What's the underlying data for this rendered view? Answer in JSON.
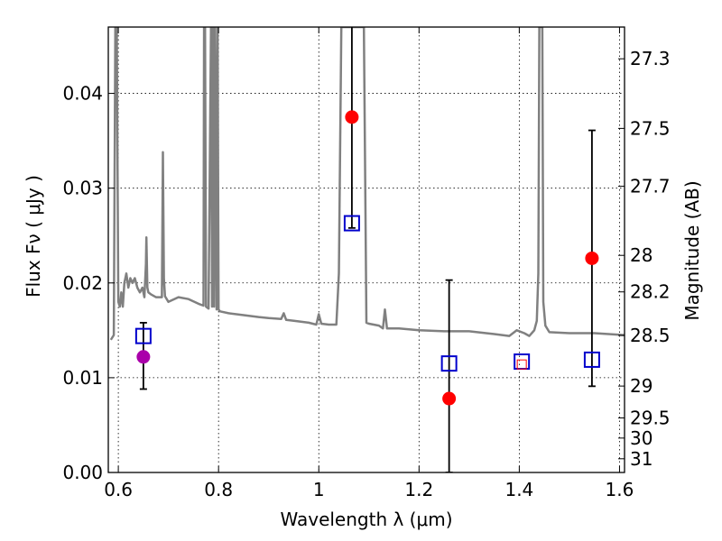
{
  "chart_data": {
    "type": "scatter",
    "title": "",
    "xlabel": "Wavelength  λ (μm)",
    "ylabel": "Flux  Fν  ( μJy )",
    "y2label": "Magnitude (AB)",
    "xlim": [
      0.58,
      1.61
    ],
    "ylim": [
      0.0,
      0.047
    ],
    "grid": true,
    "x_ticks": [
      0.6,
      0.8,
      1.0,
      1.2,
      1.4,
      1.6
    ],
    "x_tick_labels": [
      "0.6",
      "0.8",
      "1",
      "1.2",
      "1.4",
      "1.6"
    ],
    "y_ticks": [
      0.0,
      0.01,
      0.02,
      0.03,
      0.04
    ],
    "y_tick_labels": [
      "0.00",
      "0.01",
      "0.02",
      "0.03",
      "0.04"
    ],
    "y2_ticks": [
      "27.3",
      "27.5",
      "27.7",
      "28",
      "28.2",
      "28.5",
      "29",
      "29.5",
      "30",
      "31"
    ],
    "colors": {
      "spectrum": "#808080",
      "observed": "#ff0000",
      "observed_alt": "#aa00aa",
      "model": "#0000cc",
      "errorbar": "#000000"
    },
    "spectrum": {
      "x": [
        0.585,
        0.591,
        0.594,
        0.597,
        0.6,
        0.603,
        0.606,
        0.609,
        0.612,
        0.616,
        0.62,
        0.624,
        0.628,
        0.633,
        0.638,
        0.643,
        0.648,
        0.652,
        0.655,
        0.656,
        0.658,
        0.66,
        0.665,
        0.675,
        0.687,
        0.689,
        0.691,
        0.693,
        0.7,
        0.72,
        0.74,
        0.76,
        0.77,
        0.771,
        0.773,
        0.775,
        0.78,
        0.785,
        0.787,
        0.789,
        0.791,
        0.793,
        0.796,
        0.798,
        0.8,
        0.803,
        0.82,
        0.85,
        0.88,
        0.9,
        0.925,
        0.93,
        0.935,
        0.95,
        0.98,
        0.995,
        1.0,
        1.005,
        1.02,
        1.035,
        1.04,
        1.045,
        1.048,
        1.052,
        1.056,
        1.06,
        1.065,
        1.07,
        1.075,
        1.08,
        1.085,
        1.09,
        1.095,
        1.1,
        1.12,
        1.128,
        1.132,
        1.136,
        1.16,
        1.2,
        1.25,
        1.3,
        1.35,
        1.38,
        1.395,
        1.41,
        1.42,
        1.43,
        1.435,
        1.438,
        1.44,
        1.443,
        1.446,
        1.448,
        1.452,
        1.46,
        1.5,
        1.55,
        1.61
      ],
      "y": [
        0.014,
        0.0145,
        0.047,
        0.047,
        0.018,
        0.0175,
        0.019,
        0.0175,
        0.02,
        0.021,
        0.0195,
        0.0205,
        0.02,
        0.0205,
        0.0195,
        0.019,
        0.0195,
        0.0185,
        0.022,
        0.0248,
        0.0195,
        0.019,
        0.0188,
        0.0185,
        0.0185,
        0.0338,
        0.0205,
        0.0186,
        0.018,
        0.0185,
        0.0183,
        0.0178,
        0.0176,
        0.047,
        0.047,
        0.0175,
        0.0173,
        0.047,
        0.0175,
        0.047,
        0.0175,
        0.047,
        0.0172,
        0.047,
        0.0172,
        0.017,
        0.0168,
        0.0166,
        0.0164,
        0.0163,
        0.0162,
        0.0168,
        0.0161,
        0.016,
        0.0158,
        0.0156,
        0.0167,
        0.0157,
        0.0156,
        0.0156,
        0.021,
        0.047,
        0.047,
        0.047,
        0.047,
        0.047,
        0.047,
        0.047,
        0.047,
        0.047,
        0.047,
        0.047,
        0.0158,
        0.0157,
        0.0155,
        0.0152,
        0.0172,
        0.0152,
        0.0152,
        0.015,
        0.0149,
        0.0149,
        0.0146,
        0.0144,
        0.015,
        0.0147,
        0.0144,
        0.015,
        0.016,
        0.021,
        0.047,
        0.047,
        0.047,
        0.018,
        0.0155,
        0.0148,
        0.0147,
        0.0147,
        0.0145
      ]
    },
    "series": [
      {
        "marker": "circle",
        "points": [
          {
            "x": 0.65,
            "y": 0.0122,
            "color": "observed_alt",
            "err_low": 0.0034,
            "err_high": 0.0036
          },
          {
            "x": 1.066,
            "y": 0.0375,
            "color": "observed",
            "err_low": 0.0117,
            "err_high": 0.012
          },
          {
            "x": 1.26,
            "y": 0.0078,
            "color": "observed",
            "err_low": 0.0078,
            "err_high": 0.0125
          },
          {
            "x": 1.545,
            "y": 0.0226,
            "color": "observed",
            "err_low": 0.0135,
            "err_high": 0.0135
          }
        ]
      },
      {
        "marker": "square",
        "points": [
          {
            "x": 0.65,
            "y": 0.0144
          },
          {
            "x": 1.066,
            "y": 0.0263
          },
          {
            "x": 1.26,
            "y": 0.0115
          },
          {
            "x": 1.405,
            "y": 0.0117
          },
          {
            "x": 1.545,
            "y": 0.0119
          }
        ]
      }
    ],
    "upper_limit_marker": {
      "x": 1.405,
      "y": 0.0114
    }
  }
}
